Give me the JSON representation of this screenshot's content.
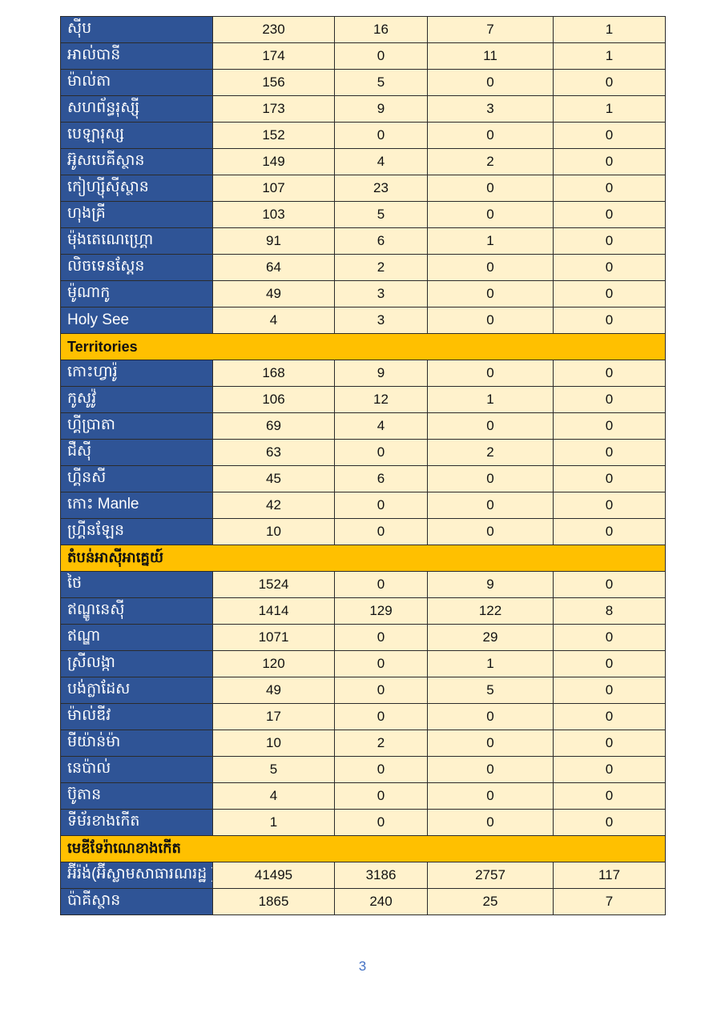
{
  "table": {
    "rows": [
      {
        "type": "data",
        "name": "ស៊ីប",
        "values": [
          "230",
          "16",
          "7",
          "1"
        ]
      },
      {
        "type": "data",
        "name": "អាល់បានី",
        "values": [
          "174",
          "0",
          "11",
          "1"
        ]
      },
      {
        "type": "data",
        "name": "ម៉ាល់តា",
        "values": [
          "156",
          "5",
          "0",
          "0"
        ]
      },
      {
        "type": "data",
        "name": "សហព័ន្ធរុស្ស៊ី",
        "values": [
          "173",
          "9",
          "3",
          "1"
        ]
      },
      {
        "type": "data",
        "name": "បេឡារុស្ស",
        "values": [
          "152",
          "0",
          "0",
          "0"
        ]
      },
      {
        "type": "data",
        "name": "អ៊ូសបេគីស្ថាន",
        "values": [
          "149",
          "4",
          "2",
          "0"
        ]
      },
      {
        "type": "data",
        "name": "កៀហ្ស៊ីស៊ីស្ថាន",
        "values": [
          "107",
          "23",
          "0",
          "0"
        ]
      },
      {
        "type": "data",
        "name": "ហុងគ្រី",
        "values": [
          "103",
          "5",
          "0",
          "0"
        ]
      },
      {
        "type": "data",
        "name": "ម៉ុងតេណេហ្គ្រោ",
        "values": [
          "91",
          "6",
          "1",
          "0"
        ]
      },
      {
        "type": "data",
        "name": "លិចទេនស្តែន",
        "values": [
          "64",
          "2",
          "0",
          "0"
        ]
      },
      {
        "type": "data",
        "name": "ម៉ូណាកូ",
        "values": [
          "49",
          "3",
          "0",
          "0"
        ]
      },
      {
        "type": "data",
        "name": "Holy See",
        "values": [
          "4",
          "3",
          "0",
          "0"
        ]
      },
      {
        "type": "section",
        "name": "Territories"
      },
      {
        "type": "data",
        "name": "កោះហ្វារ៉ូ",
        "values": [
          "168",
          "9",
          "0",
          "0"
        ]
      },
      {
        "type": "data",
        "name": "កូសូវ៉ូ",
        "values": [
          "106",
          "12",
          "1",
          "0"
        ]
      },
      {
        "type": "data",
        "name": "ហ្គីប្រាតា",
        "values": [
          "69",
          "4",
          "0",
          "0"
        ]
      },
      {
        "type": "data",
        "name": "ជឺស៊ី",
        "values": [
          "63",
          "0",
          "2",
          "0"
        ]
      },
      {
        "type": "data",
        "name": "ហ្គីនសី",
        "values": [
          "45",
          "6",
          "0",
          "0"
        ]
      },
      {
        "type": "data",
        "name": "កោះ Manle",
        "values": [
          "42",
          "0",
          "0",
          "0"
        ]
      },
      {
        "type": "data",
        "name": "ហ្គ្រីនឡែន",
        "values": [
          "10",
          "0",
          "0",
          "0"
        ]
      },
      {
        "type": "section",
        "name": "តំបន់អាស៊ីអាគ្នេយ៍"
      },
      {
        "type": "data",
        "name": "ថៃ",
        "values": [
          "1524",
          "0",
          "9",
          "0"
        ]
      },
      {
        "type": "data",
        "name": "ឥណ្ឌូនេស៊ី",
        "values": [
          "1414",
          "129",
          "122",
          "8"
        ]
      },
      {
        "type": "data",
        "name": "ឥណ្ឌា",
        "values": [
          "1071",
          "0",
          "29",
          "0"
        ]
      },
      {
        "type": "data",
        "name": "ស្រីលង្កា",
        "values": [
          "120",
          "0",
          "1",
          "0"
        ]
      },
      {
        "type": "data",
        "name": "បង់ក្លាដែស",
        "values": [
          "49",
          "0",
          "5",
          "0"
        ]
      },
      {
        "type": "data",
        "name": "ម៉ាល់ឌីវ",
        "values": [
          "17",
          "0",
          "0",
          "0"
        ]
      },
      {
        "type": "data",
        "name": "មីយ៉ាន់ម៉ា",
        "values": [
          "10",
          "2",
          "0",
          "0"
        ]
      },
      {
        "type": "data",
        "name": "នេប៉ាល់",
        "values": [
          "5",
          "0",
          "0",
          "0"
        ]
      },
      {
        "type": "data",
        "name": "ប៊ូតាន",
        "values": [
          "4",
          "0",
          "0",
          "0"
        ]
      },
      {
        "type": "data",
        "name": "ទីម័រខាងកើត",
        "values": [
          "1",
          "0",
          "0",
          "0"
        ]
      },
      {
        "type": "section",
        "name": "មេឌីទែរ៉ាណេខាងកើត"
      },
      {
        "type": "data",
        "name": "អ៊ីរ៉ង់(អ៊ីស្លាមសាធារណរដ្ឋ )",
        "values": [
          "41495",
          "3186",
          "2757",
          "117"
        ]
      },
      {
        "type": "data",
        "name": "ប៉ាគីស្ថាន",
        "values": [
          "1865",
          "240",
          "25",
          "7"
        ]
      }
    ]
  },
  "footer": {
    "page_number": "3"
  }
}
